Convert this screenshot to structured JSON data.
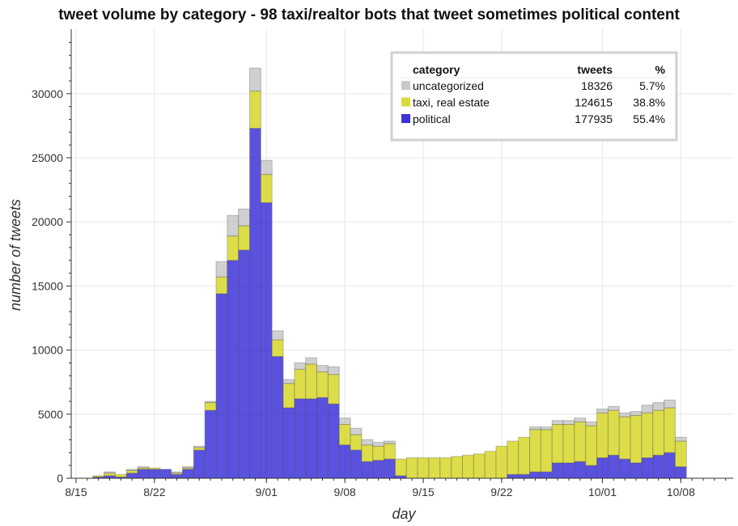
{
  "chart_data": {
    "type": "bar",
    "stacked": true,
    "title": "tweet volume by category - 98 taxi/realtor bots that tweet sometimes political content",
    "xlabel": "day",
    "ylabel": "number of tweets",
    "ylim": [
      0,
      35000
    ],
    "yticks": [
      0,
      5000,
      10000,
      15000,
      20000,
      25000,
      30000
    ],
    "x_ticks": [
      "8/15",
      "8/22",
      "9/01",
      "9/08",
      "9/15",
      "9/22",
      "10/01",
      "10/08"
    ],
    "grid": true,
    "legend_position": "top-right",
    "categories": [
      "8/17",
      "8/18",
      "8/19",
      "8/20",
      "8/21",
      "8/22",
      "8/23",
      "8/24",
      "8/25",
      "8/26",
      "8/27",
      "8/28",
      "8/29",
      "8/30",
      "8/31",
      "9/01",
      "9/02",
      "9/03",
      "9/04",
      "9/05",
      "9/06",
      "9/07",
      "9/08",
      "9/09",
      "9/10",
      "9/11",
      "9/12",
      "9/13",
      "9/14",
      "9/15",
      "9/16",
      "9/17",
      "9/18",
      "9/19",
      "9/20",
      "9/21",
      "9/22",
      "9/23",
      "9/24",
      "9/25",
      "9/26",
      "9/27",
      "9/28",
      "9/29",
      "9/30",
      "10/01",
      "10/02",
      "10/03",
      "10/04",
      "10/05",
      "10/06",
      "10/07",
      "10/08"
    ],
    "series": [
      {
        "name": "political",
        "color": "#1a0fd1",
        "values": [
          100,
          200,
          100,
          400,
          700,
          700,
          700,
          300,
          700,
          2200,
          5300,
          14400,
          17000,
          17800,
          27300,
          21500,
          9500,
          5500,
          6200,
          6200,
          6300,
          5800,
          2600,
          2200,
          1300,
          1400,
          1500,
          200,
          0,
          0,
          0,
          0,
          0,
          0,
          0,
          0,
          0,
          300,
          300,
          500,
          500,
          1200,
          1200,
          1300,
          1000,
          1600,
          1800,
          1500,
          1200,
          1600,
          1800,
          2000,
          900
        ]
      },
      {
        "name": "taxi, real estate",
        "color": "#d4d41c",
        "values": [
          100,
          200,
          200,
          200,
          100,
          100,
          0,
          100,
          100,
          200,
          600,
          1300,
          1900,
          1900,
          2900,
          2200,
          1300,
          1900,
          2300,
          2700,
          2000,
          2300,
          1600,
          1200,
          1300,
          1100,
          1200,
          1300,
          1600,
          1600,
          1600,
          1600,
          1700,
          1800,
          1900,
          2100,
          2500,
          2600,
          2900,
          3300,
          3300,
          3000,
          3000,
          3100,
          3100,
          3500,
          3500,
          3300,
          3700,
          3500,
          3500,
          3500,
          2000
        ]
      },
      {
        "name": "uncategorized",
        "color": "#c0c0c0",
        "values": [
          0,
          100,
          0,
          100,
          100,
          0,
          0,
          100,
          100,
          100,
          100,
          1200,
          1600,
          1300,
          1800,
          1100,
          700,
          300,
          500,
          500,
          500,
          600,
          500,
          500,
          400,
          300,
          200,
          0,
          0,
          0,
          0,
          0,
          0,
          0,
          0,
          0,
          0,
          0,
          0,
          200,
          200,
          300,
          300,
          300,
          300,
          300,
          300,
          300,
          300,
          600,
          600,
          600,
          300
        ]
      }
    ],
    "legend": {
      "header": {
        "category": "category",
        "tweets": "tweets",
        "pct": "%"
      },
      "rows": [
        {
          "name": "uncategorized",
          "color": "#c0c0c0",
          "tweets": "18326",
          "pct": "5.7%"
        },
        {
          "name": "taxi, real estate",
          "color": "#d4d41c",
          "tweets": "124615",
          "pct": "38.8%"
        },
        {
          "name": "political",
          "color": "#1a0fd1",
          "tweets": "177935",
          "pct": "55.4%"
        }
      ]
    }
  }
}
